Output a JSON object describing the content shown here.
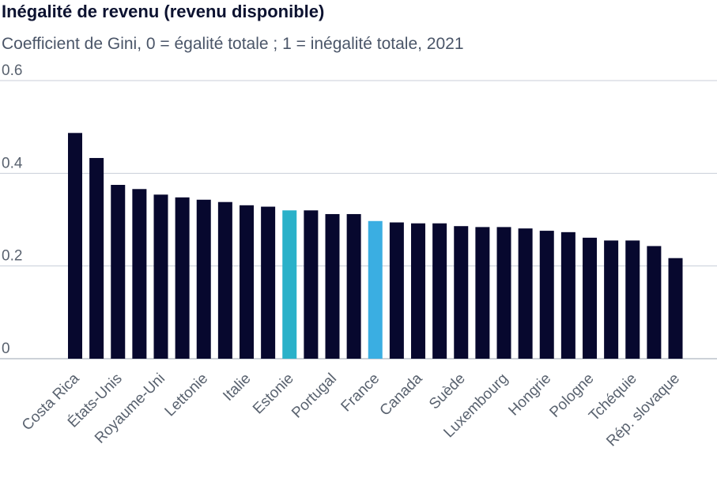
{
  "chart_data": {
    "type": "bar",
    "title": "Inégalité de revenu (revenu disponible)",
    "subtitle": "Coefficient de Gini, 0 = égalité totale ; 1 = inégalité totale, 2021",
    "ylim": [
      0,
      0.6
    ],
    "yticks": [
      "0",
      "0.2",
      "0.4",
      "0.6"
    ],
    "yticks_values": [
      0,
      0.2,
      0.4,
      0.6
    ],
    "grid": true,
    "categories": [
      "Costa Rica",
      "",
      "États-Unis",
      "",
      "Royaume-Uni",
      "",
      "Lettonie",
      "",
      "Italie",
      "",
      "Estonie",
      "",
      "Portugal",
      "",
      "France",
      "",
      "Canada",
      "",
      "Suède",
      "",
      "Luxembourg",
      "",
      "Hongrie",
      "",
      "Pologne",
      "",
      "Tchéquie",
      "",
      "Rép. slovaque"
    ],
    "values": [
      0.487,
      0.433,
      0.375,
      0.366,
      0.354,
      0.348,
      0.343,
      0.338,
      0.331,
      0.328,
      0.32,
      0.32,
      0.312,
      0.312,
      0.297,
      0.294,
      0.292,
      0.292,
      0.286,
      0.284,
      0.284,
      0.281,
      0.276,
      0.273,
      0.261,
      0.255,
      0.255,
      0.243,
      0.217
    ],
    "colors": {
      "default": "#07082e",
      "Estonie": "#2ab1c9",
      "France": "#3aaee2",
      "grid": "#c8ced8",
      "axis": "#9aa3b2"
    }
  }
}
